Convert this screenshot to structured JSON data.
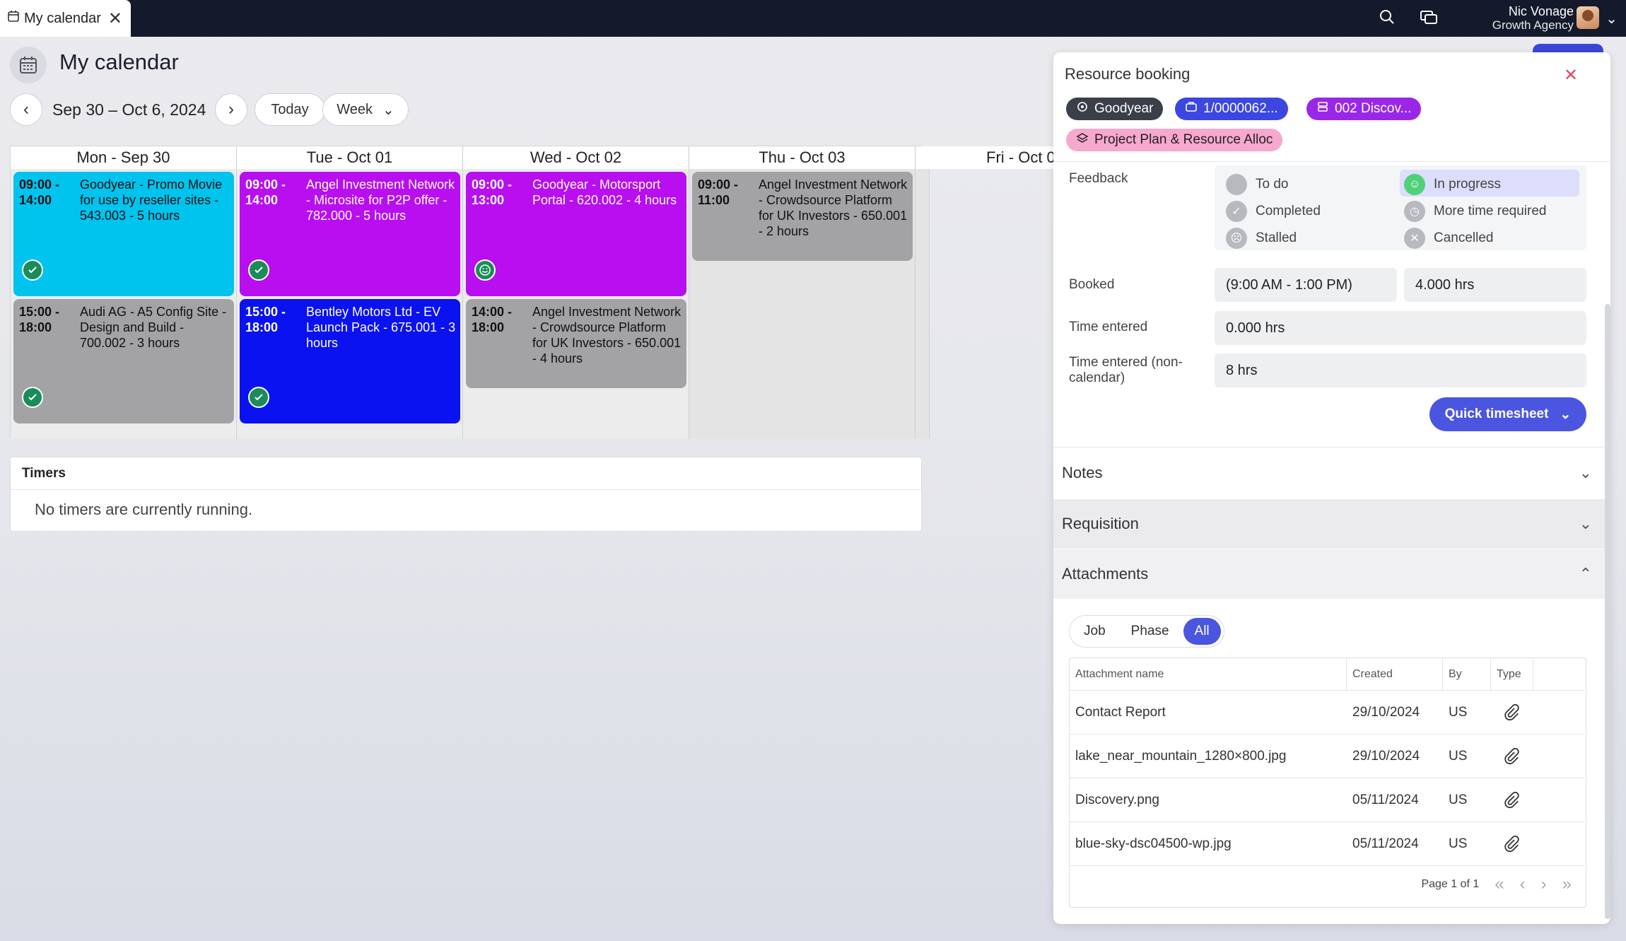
{
  "app": {
    "tab_title": "My calendar",
    "tab_close": "✕"
  },
  "user": {
    "name": "Nic Vonage",
    "agency": "Growth Agency"
  },
  "header": {
    "title": "My calendar",
    "date_range": "Sep 30 – Oct 6, 2024",
    "today_label": "Today",
    "view_label": "Week"
  },
  "calendar": {
    "days": [
      "Mon - Sep 30",
      "Tue - Oct 01",
      "Wed - Oct 02",
      "Thu - Oct 03",
      "Fri - Oct 0"
    ],
    "events": [
      {
        "time": "09:00 - 14:00",
        "desc": "Goodyear - Promo Movie for use by reseller sites - 543.003 - 5 hours",
        "color": "#00c3ee"
      },
      {
        "time": "15:00 - 18:00",
        "desc": "Audi AG - A5 Config Site - Design and Build - 700.002 - 3 hours",
        "color": "#a3a3a5"
      },
      {
        "time": "09:00 - 14:00",
        "desc": "Angel Investment Network - Microsite for P2P offer - 782.000 - 5 hours",
        "color": "#b80ef0"
      },
      {
        "time": "15:00 - 18:00",
        "desc": "Bentley Motors Ltd - EV Launch Pack - 675.001 - 3 hours",
        "color": "#0a12f0"
      },
      {
        "time": "09:00 - 13:00",
        "desc": "Goodyear - Motorsport Portal - 620.002 - 4 hours",
        "color": "#b80ef0"
      },
      {
        "time": "14:00 - 18:00",
        "desc": "Angel Investment Network - Crowdsource Platform for UK Investors - 650.001 - 4 hours",
        "color": "#a3a3a5"
      },
      {
        "time": "09:00 - 11:00",
        "desc": "Angel Investment Network - Crowdsource Platform for UK Investors - 650.001 - 2 hours",
        "color": "#a3a3a5"
      }
    ]
  },
  "timers": {
    "title": "Timers",
    "message": "No timers are currently running."
  },
  "panel": {
    "title": "Resource booking",
    "chips": {
      "client": "Goodyear",
      "job": "1/0000062...",
      "phase": "002 Discov...",
      "plan": "Project Plan & Resource Alloc"
    },
    "feedback_label": "Feedback",
    "feedback_options": {
      "todo": "To do",
      "in_progress": "In progress",
      "completed": "Completed",
      "more_time": "More time required",
      "stalled": "Stalled",
      "cancelled": "Cancelled"
    },
    "booked_label": "Booked",
    "booked_time": "(9:00 AM - 1:00 PM)",
    "booked_hours": "4.000 hrs",
    "time_entered_label": "Time entered",
    "time_entered": "0.000 hrs",
    "time_non_cal_label": "Time entered (non-calendar)",
    "time_non_cal": "8 hrs",
    "quick_timesheet": "Quick timesheet",
    "sections": {
      "notes": "Notes",
      "requisition": "Requisition",
      "attachments": "Attachments"
    },
    "filters": {
      "job": "Job",
      "phase": "Phase",
      "all": "All"
    },
    "table": {
      "headers": {
        "name": "Attachment name",
        "created": "Created",
        "by": "By",
        "type": "Type"
      },
      "rows": [
        {
          "name": "Contact Report",
          "created": "29/10/2024",
          "by": "US"
        },
        {
          "name": "lake_near_mountain_1280×800.jpg",
          "created": "29/10/2024",
          "by": "US"
        },
        {
          "name": "Discovery.png",
          "created": "05/11/2024",
          "by": "US"
        },
        {
          "name": "blue-sky-dsc04500-wp.jpg",
          "created": "05/11/2024",
          "by": "US"
        }
      ],
      "page": "Page 1 of 1"
    }
  }
}
